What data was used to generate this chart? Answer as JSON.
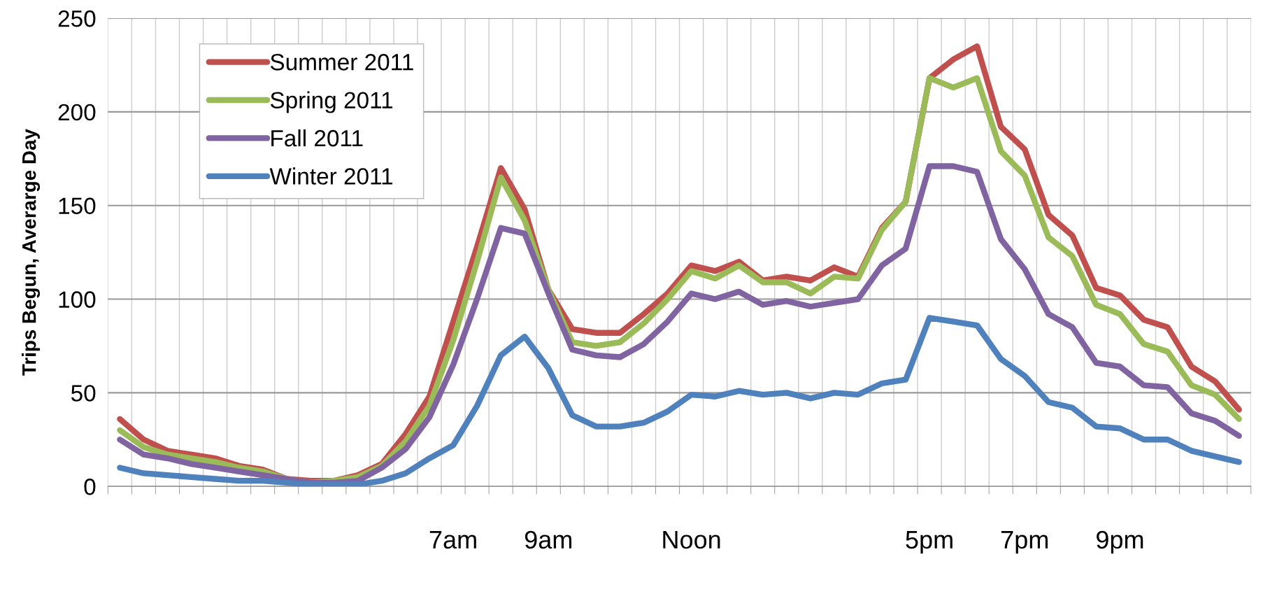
{
  "chart_data": {
    "type": "line",
    "ylabel": "Trips Begun, Averarge Day",
    "categories": [
      null,
      null,
      null,
      null,
      null,
      null,
      null,
      null,
      null,
      null,
      null,
      null,
      null,
      null,
      "7am",
      null,
      null,
      null,
      "9am",
      null,
      null,
      null,
      null,
      null,
      "Noon",
      null,
      null,
      null,
      null,
      null,
      null,
      null,
      null,
      null,
      "5pm",
      null,
      null,
      null,
      "7pm",
      null,
      null,
      null,
      "9pm",
      null,
      null,
      null,
      null,
      null
    ],
    "series": [
      {
        "name": "Summer 2011",
        "color": "#c0504d",
        "values": [
          36,
          25,
          19,
          17,
          15,
          11,
          9,
          4,
          3,
          3,
          6,
          12,
          28,
          48,
          88,
          128,
          170,
          148,
          105,
          84,
          82,
          82,
          92,
          103,
          118,
          115,
          120,
          110,
          112,
          110,
          117,
          112,
          138,
          152,
          218,
          228,
          235,
          192,
          180,
          145,
          134,
          106,
          102,
          89,
          85,
          64,
          56,
          41
        ]
      },
      {
        "name": "Spring 2011",
        "color": "#9bbb59",
        "values": [
          30,
          21,
          17,
          15,
          13,
          10,
          8,
          4,
          2,
          3,
          5,
          11,
          24,
          43,
          78,
          120,
          165,
          142,
          105,
          77,
          75,
          77,
          87,
          100,
          115,
          111,
          118,
          109,
          109,
          103,
          112,
          111,
          137,
          152,
          218,
          213,
          218,
          179,
          166,
          133,
          123,
          97,
          92,
          76,
          72,
          54,
          49,
          36
        ]
      },
      {
        "name": "Fall 2011",
        "color": "#8064a2",
        "values": [
          25,
          17,
          15,
          12,
          10,
          8,
          6,
          4,
          2,
          2,
          3,
          10,
          20,
          37,
          65,
          100,
          138,
          135,
          103,
          73,
          70,
          69,
          76,
          88,
          103,
          100,
          104,
          97,
          99,
          96,
          98,
          100,
          118,
          127,
          171,
          171,
          168,
          132,
          116,
          92,
          85,
          66,
          64,
          54,
          53,
          39,
          35,
          27
        ]
      },
      {
        "name": "Winter 2011",
        "color": "#4f81bd",
        "values": [
          10,
          7,
          6,
          5,
          4,
          3,
          3,
          2,
          1,
          1,
          1,
          3,
          7,
          15,
          22,
          43,
          70,
          80,
          63,
          38,
          32,
          32,
          34,
          40,
          49,
          48,
          51,
          49,
          50,
          47,
          50,
          49,
          55,
          57,
          90,
          88,
          86,
          68,
          59,
          45,
          42,
          32,
          31,
          25,
          25,
          19,
          16,
          13
        ]
      }
    ],
    "ylim": [
      0,
      250
    ],
    "yticks": [
      0,
      50,
      100,
      150,
      200,
      250
    ],
    "grid": true,
    "legend": "top left"
  }
}
